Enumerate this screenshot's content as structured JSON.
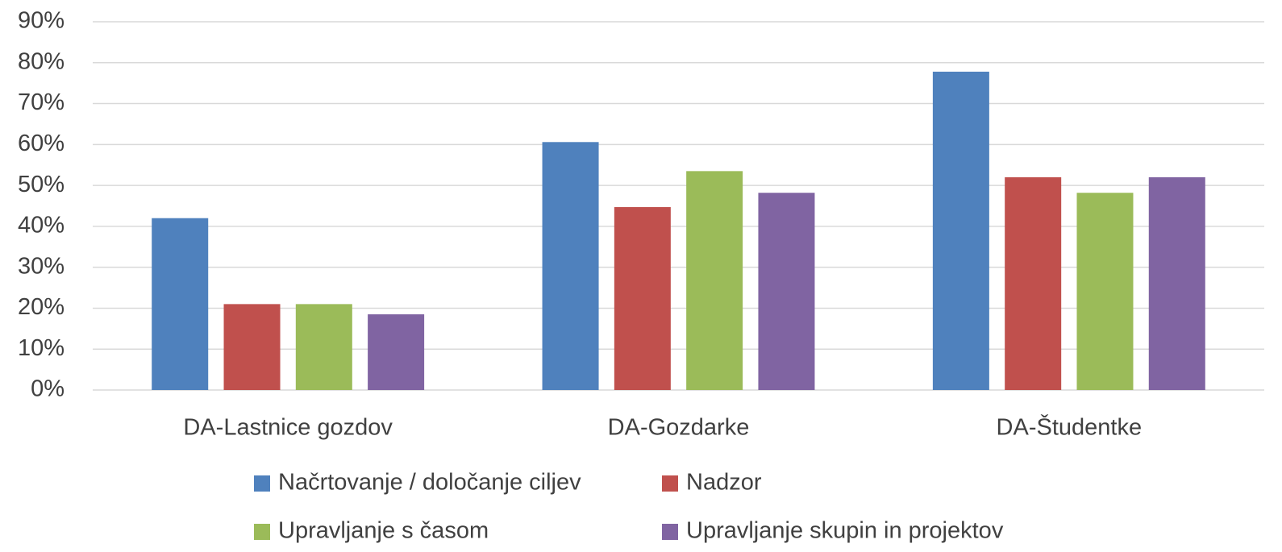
{
  "chart_data": {
    "type": "bar",
    "categories": [
      "DA-Lastnice gozdov",
      "DA-Gozdarke",
      "DA-Študentke"
    ],
    "series": [
      {
        "name": "Načrtovanje / določanje ciljev",
        "color": "#4f81bd",
        "values": [
          42,
          60.6,
          77.8
        ]
      },
      {
        "name": "Nadzor",
        "color": "#c0504d",
        "values": [
          21,
          44.7,
          52
        ]
      },
      {
        "name": "Upravljanje s časom",
        "color": "#9bbb59",
        "values": [
          21,
          53.5,
          48.2
        ]
      },
      {
        "name": "Upravljanje skupin in projektov",
        "color": "#8064a2",
        "values": [
          18.5,
          48.2,
          52
        ]
      }
    ],
    "ylim": [
      0,
      90
    ],
    "yticks": [
      {
        "value": 0,
        "label": "0%"
      },
      {
        "value": 10,
        "label": "10%"
      },
      {
        "value": 20,
        "label": "20%"
      },
      {
        "value": 30,
        "label": "30%"
      },
      {
        "value": 40,
        "label": "40%"
      },
      {
        "value": 50,
        "label": "50%"
      },
      {
        "value": 60,
        "label": "60%"
      },
      {
        "value": 70,
        "label": "70%"
      },
      {
        "value": 80,
        "label": "80%"
      },
      {
        "value": 90,
        "label": "90%"
      }
    ],
    "grid": true,
    "legend": "bottom"
  }
}
